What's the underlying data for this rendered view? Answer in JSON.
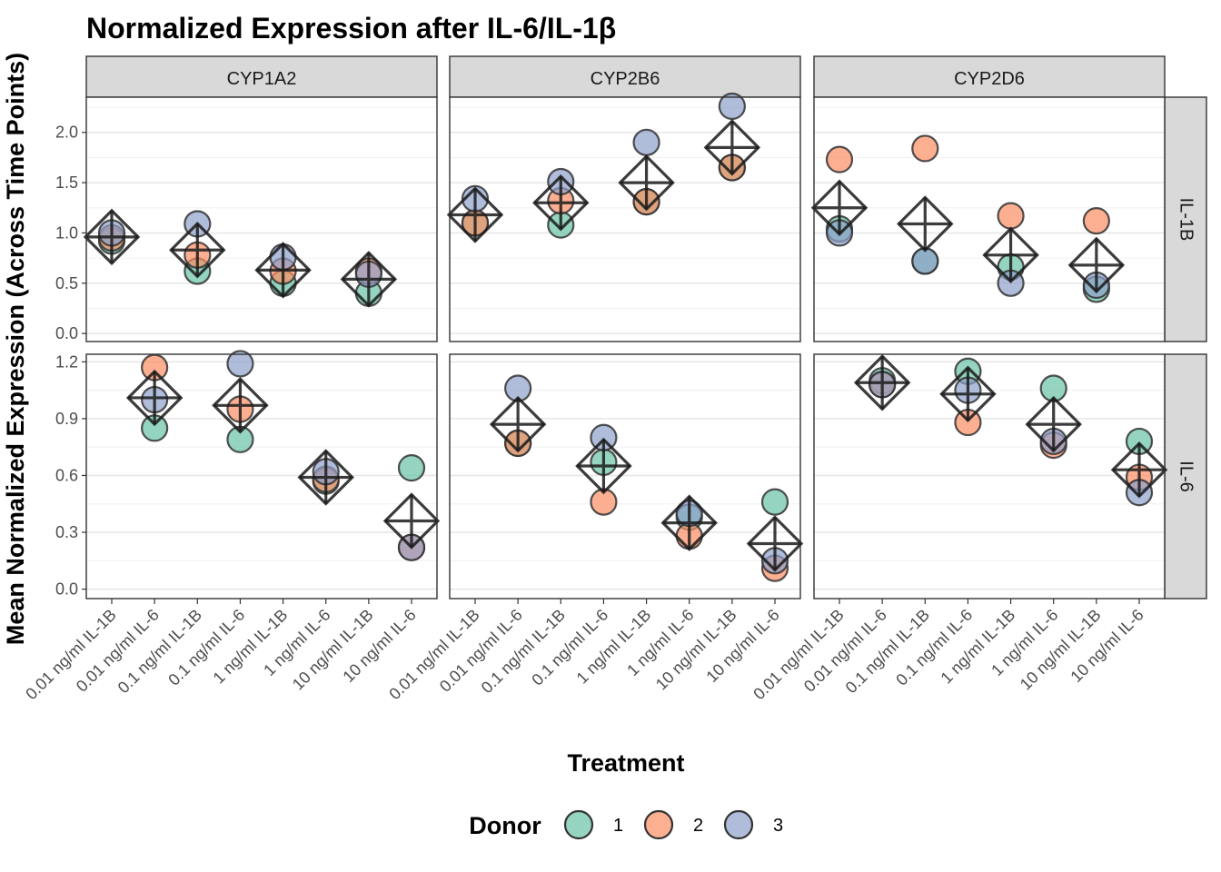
{
  "title": "Normalized Expression after IL-6/IL-1β",
  "colors": {
    "donor_1": "#66C2A5",
    "donor_2": "#FC8D62",
    "donor_3": "#8DA0CB",
    "strip_background": "#D9D9D9",
    "panel_border": "#333333",
    "mean_marker": "#1A1A1A"
  },
  "chart_data": {
    "type": "scatter",
    "title": "Normalized Expression after IL-6/IL-1β",
    "xlabel": "Treatment",
    "ylabel": "Mean Normalized Expression (Across Time Points)",
    "categories": [
      "0.01 ng/ml IL-1B",
      "0.01 ng/ml IL-6",
      "0.1 ng/ml IL-1B",
      "0.1 ng/ml IL-6",
      "1 ng/ml IL-1B",
      "1 ng/ml IL-6",
      "10 ng/ml IL-1B",
      "10 ng/ml IL-6"
    ],
    "columns": [
      "CYP1A2",
      "CYP2B6",
      "CYP2D6"
    ],
    "rows": [
      {
        "label": "IL-1B",
        "ylim": [
          -0.08,
          2.35
        ],
        "yticks": [
          0.0,
          0.5,
          1.0,
          1.5,
          2.0
        ],
        "ytick_labels": [
          "0.0",
          "0.5",
          "1.0",
          "1.5",
          "2.0"
        ]
      },
      {
        "label": "IL-6",
        "ylim": [
          -0.05,
          1.24
        ],
        "yticks": [
          0.0,
          0.3,
          0.6,
          0.9,
          1.2
        ],
        "ytick_labels": [
          "0.0",
          "0.3",
          "0.6",
          "0.9",
          "1.2"
        ]
      }
    ],
    "legend": {
      "title": "Donor",
      "entries": [
        "1",
        "2",
        "3"
      ],
      "position": "bottom"
    },
    "grid": true,
    "mean_marker": "diamond with cross",
    "panels": [
      {
        "row": "IL-1B",
        "column": "CYP1A2",
        "points": [
          {
            "treatment": "0.01 ng/ml IL-1B",
            "values": [
              0.92,
              0.95,
              1.0
            ],
            "mean": 0.96
          },
          {
            "treatment": "0.1 ng/ml IL-1B",
            "values": [
              0.62,
              0.78,
              1.09
            ],
            "mean": 0.83
          },
          {
            "treatment": "1 ng/ml IL-1B",
            "values": [
              0.5,
              0.62,
              0.76
            ],
            "mean": 0.63
          },
          {
            "treatment": "10 ng/ml IL-1B",
            "values": [
              0.4,
              0.62,
              0.59
            ],
            "mean": 0.54
          }
        ]
      },
      {
        "row": "IL-1B",
        "column": "CYP2B6",
        "points": [
          {
            "treatment": "0.01 ng/ml IL-1B",
            "values": [
              1.1,
              1.1,
              1.34
            ],
            "mean": 1.18
          },
          {
            "treatment": "0.1 ng/ml IL-1B",
            "values": [
              1.08,
              1.32,
              1.51
            ],
            "mean": 1.3
          },
          {
            "treatment": "1 ng/ml IL-1B",
            "values": [
              1.31,
              1.31,
              1.9
            ],
            "mean": 1.5
          },
          {
            "treatment": "10 ng/ml IL-1B",
            "values": [
              1.65,
              1.65,
              2.26
            ],
            "mean": 1.85
          }
        ]
      },
      {
        "row": "IL-1B",
        "column": "CYP2D6",
        "points": [
          {
            "treatment": "0.01 ng/ml IL-1B",
            "values": [
              1.04,
              1.73,
              1.0
            ],
            "mean": 1.25
          },
          {
            "treatment": "0.1 ng/ml IL-1B",
            "values": [
              0.72,
              1.84,
              0.72
            ],
            "mean": 1.09
          },
          {
            "treatment": "1 ng/ml IL-1B",
            "values": [
              0.66,
              1.17,
              0.5
            ],
            "mean": 0.78
          },
          {
            "treatment": "10 ng/ml IL-1B",
            "values": [
              0.44,
              1.12,
              0.48
            ],
            "mean": 0.68
          }
        ]
      },
      {
        "row": "IL-6",
        "column": "CYP1A2",
        "points": [
          {
            "treatment": "0.01 ng/ml IL-6",
            "values": [
              0.85,
              1.17,
              1.0
            ],
            "mean": 1.01
          },
          {
            "treatment": "0.1 ng/ml IL-6",
            "values": [
              0.79,
              0.95,
              1.19
            ],
            "mean": 0.97
          },
          {
            "treatment": "1 ng/ml IL-6",
            "values": [
              0.57,
              0.58,
              0.62
            ],
            "mean": 0.59
          },
          {
            "treatment": "10 ng/ml IL-6",
            "values": [
              0.64,
              0.22,
              0.22
            ],
            "mean": 0.36
          }
        ]
      },
      {
        "row": "IL-6",
        "column": "CYP2B6",
        "points": [
          {
            "treatment": "0.01 ng/ml IL-6",
            "values": [
              0.77,
              0.77,
              1.06
            ],
            "mean": 0.87
          },
          {
            "treatment": "0.1 ng/ml IL-6",
            "values": [
              0.67,
              0.46,
              0.8
            ],
            "mean": 0.65
          },
          {
            "treatment": "1 ng/ml IL-6",
            "values": [
              0.38,
              0.28,
              0.4
            ],
            "mean": 0.35
          },
          {
            "treatment": "10 ng/ml IL-6",
            "values": [
              0.46,
              0.11,
              0.15
            ],
            "mean": 0.24
          }
        ]
      },
      {
        "row": "IL-6",
        "column": "CYP2D6",
        "points": [
          {
            "treatment": "0.01 ng/ml IL-6",
            "values": [
              1.1,
              1.08,
              1.08
            ],
            "mean": 1.09
          },
          {
            "treatment": "0.1 ng/ml IL-6",
            "values": [
              1.15,
              0.88,
              1.05
            ],
            "mean": 1.03
          },
          {
            "treatment": "1 ng/ml IL-6",
            "values": [
              1.06,
              0.76,
              0.78
            ],
            "mean": 0.87
          },
          {
            "treatment": "10 ng/ml IL-6",
            "values": [
              0.78,
              0.59,
              0.51
            ],
            "mean": 0.63
          }
        ]
      }
    ]
  }
}
